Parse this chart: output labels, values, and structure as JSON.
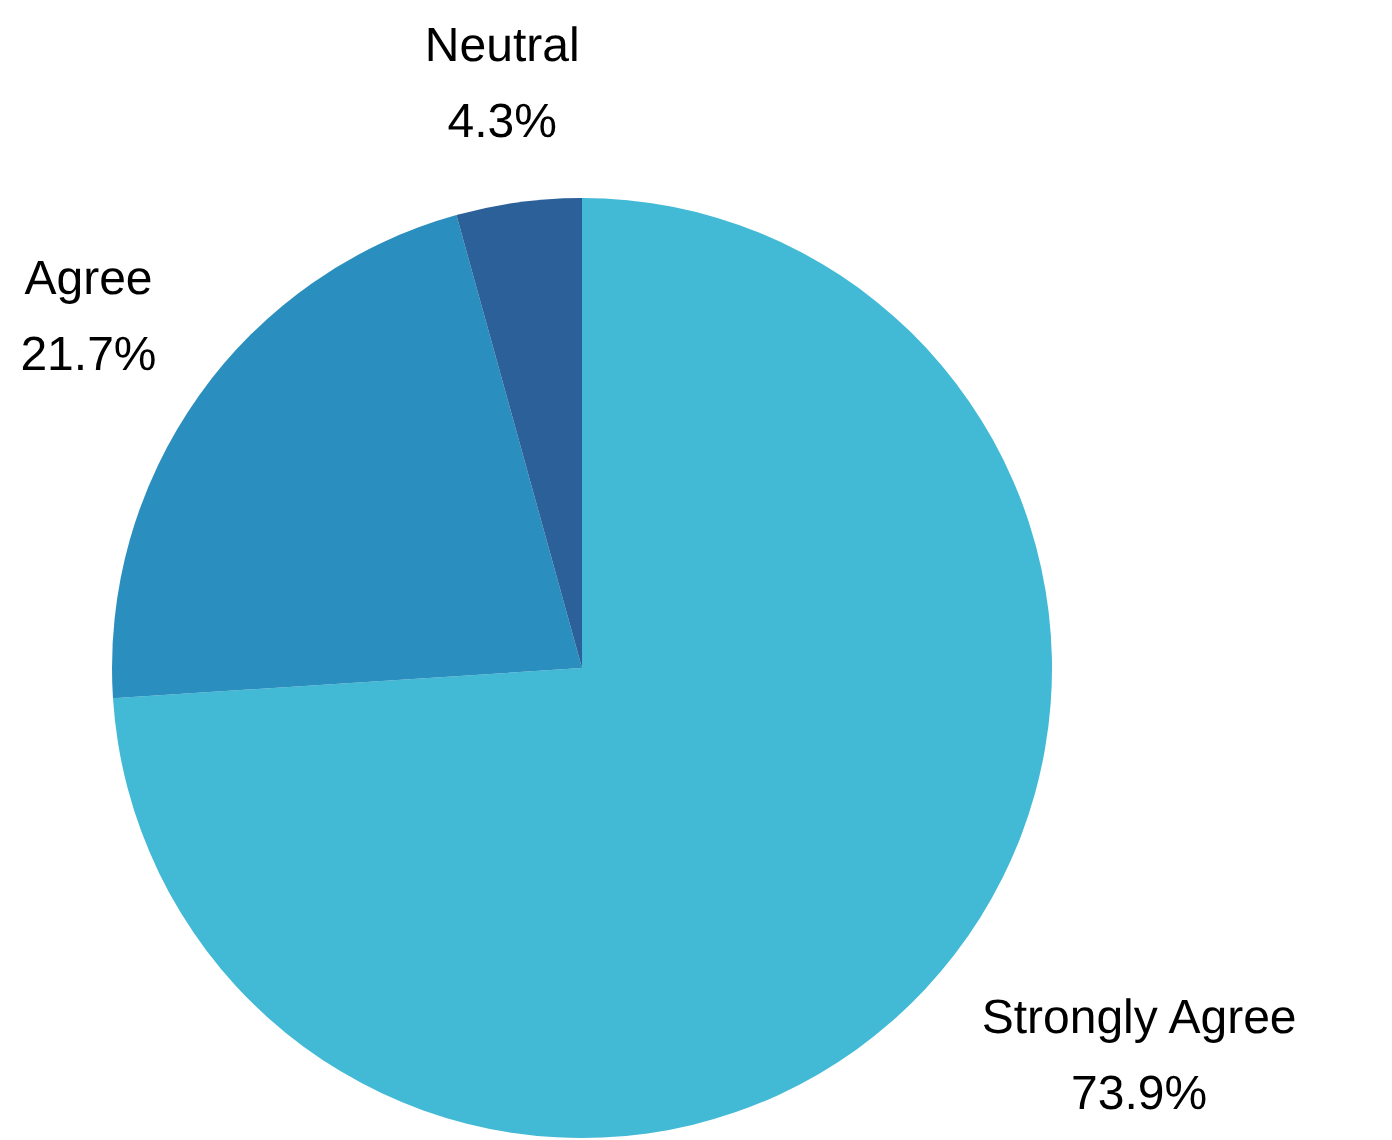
{
  "chart_data": {
    "type": "pie",
    "categories": [
      "Strongly Agree",
      "Agree",
      "Neutral"
    ],
    "values": [
      73.9,
      21.7,
      4.3
    ],
    "colors": [
      "#42b9d5",
      "#2a8fbe",
      "#2c6098"
    ],
    "value_labels": [
      "73.9%",
      "21.7%",
      "4.3%"
    ]
  }
}
